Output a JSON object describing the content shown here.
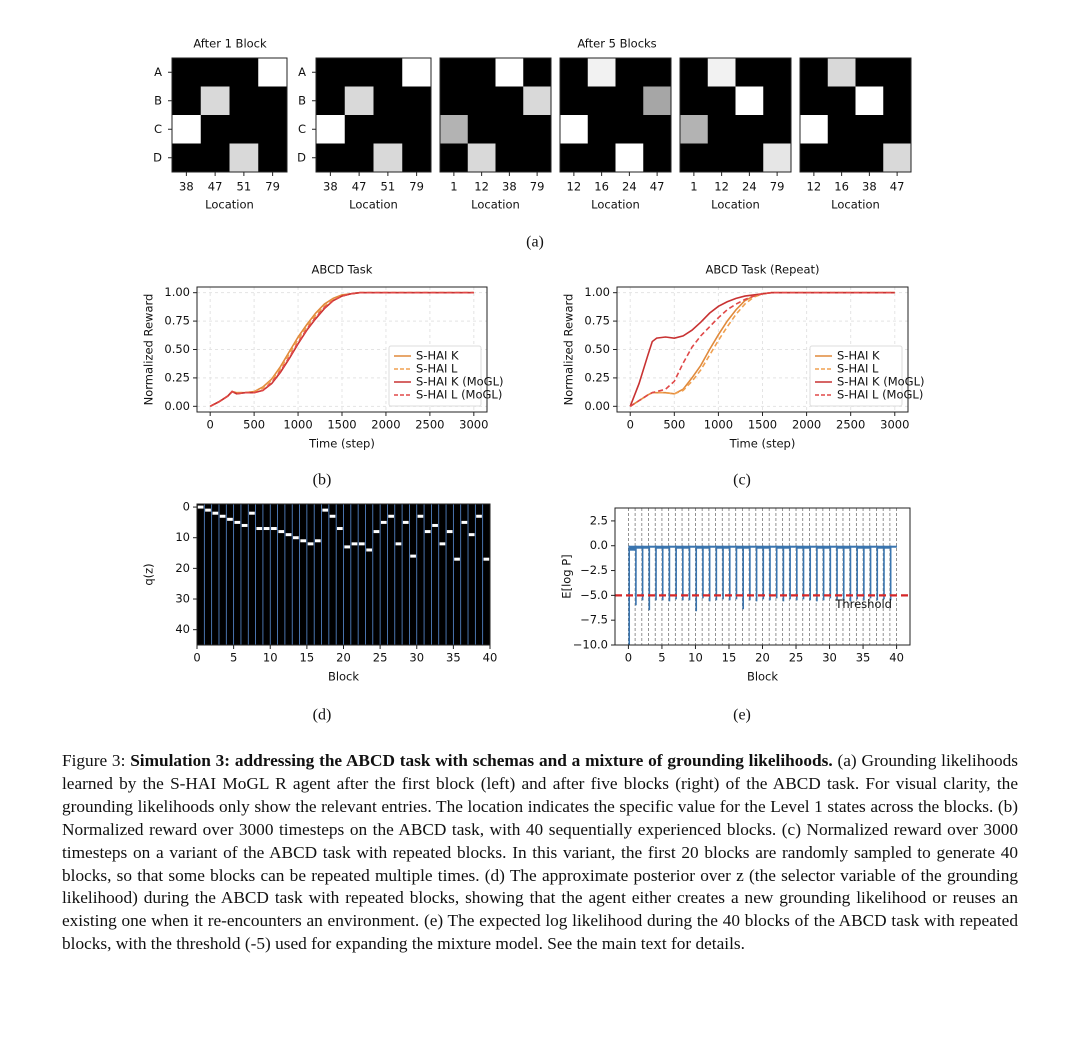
{
  "chart_data": [
    {
      "type": "heatmap",
      "title": "After 1 Block",
      "rows": [
        "A",
        "B",
        "C",
        "D"
      ],
      "categories": [
        "38",
        "47",
        "51",
        "79"
      ],
      "xlabel": "Location",
      "values": [
        [
          0,
          0,
          0,
          1
        ],
        [
          0,
          0.85,
          0,
          0
        ],
        [
          1,
          0,
          0,
          0
        ],
        [
          0,
          0,
          0.85,
          0
        ]
      ]
    },
    {
      "type": "heatmap",
      "title": "After 5 Blocks",
      "rows": [
        "A",
        "B",
        "C",
        "D"
      ],
      "categories": [
        "38",
        "47",
        "51",
        "79"
      ],
      "xlabel": "Location",
      "values": [
        [
          0,
          0,
          0,
          1
        ],
        [
          0,
          0.85,
          0,
          0
        ],
        [
          1,
          0,
          0,
          0
        ],
        [
          0,
          0,
          0.85,
          0
        ]
      ]
    },
    {
      "type": "heatmap",
      "categories": [
        "1",
        "12",
        "38",
        "79"
      ],
      "xlabel": "Location",
      "values": [
        [
          0,
          0,
          1,
          0
        ],
        [
          0,
          0,
          0,
          0.85
        ],
        [
          0.7,
          0,
          0,
          0
        ],
        [
          0,
          0.85,
          0,
          0
        ]
      ]
    },
    {
      "type": "heatmap",
      "categories": [
        "12",
        "16",
        "24",
        "47"
      ],
      "xlabel": "Location",
      "values": [
        [
          0,
          0.95,
          0,
          0
        ],
        [
          0,
          0,
          0,
          0.65
        ],
        [
          1,
          0,
          0,
          0
        ],
        [
          0,
          0,
          1,
          0
        ]
      ]
    },
    {
      "type": "heatmap",
      "categories": [
        "1",
        "12",
        "24",
        "79"
      ],
      "xlabel": "Location",
      "values": [
        [
          0,
          0.95,
          0,
          0
        ],
        [
          0,
          0,
          1,
          0
        ],
        [
          0.7,
          0,
          0,
          0
        ],
        [
          0,
          0,
          0,
          0.9
        ]
      ]
    },
    {
      "type": "heatmap",
      "categories": [
        "12",
        "16",
        "38",
        "47"
      ],
      "xlabel": "Location",
      "values": [
        [
          0,
          0.85,
          0,
          0
        ],
        [
          0,
          0,
          1,
          0
        ],
        [
          1,
          0,
          0,
          0
        ],
        [
          0,
          0,
          0,
          0.85
        ]
      ]
    },
    {
      "type": "line",
      "title": "ABCD Task",
      "xlabel": "Time (step)",
      "ylabel": "Normalized Reward",
      "grid": true,
      "legend": "lower right",
      "xlim": [
        -150,
        3150
      ],
      "ylim": [
        -0.05,
        1.05
      ],
      "xticks": [
        0,
        500,
        1000,
        1500,
        2000,
        2500,
        3000
      ],
      "yticks": [
        {
          "value": 0,
          "label": "0.00"
        },
        {
          "value": 0.25,
          "label": "0.25"
        },
        {
          "value": 0.5,
          "label": "0.50"
        },
        {
          "value": 0.75,
          "label": "0.75"
        },
        {
          "value": 1,
          "label": "1.00"
        }
      ],
      "x": [
        0,
        100,
        200,
        250,
        300,
        400,
        500,
        600,
        700,
        800,
        900,
        1000,
        1100,
        1200,
        1300,
        1400,
        1500,
        1600,
        1700,
        1800,
        1900,
        2000,
        2500,
        3000
      ],
      "series": [
        {
          "name": "S-HAI K",
          "color": "#e08a3c",
          "linestyle": "solid",
          "values": [
            0,
            0.04,
            0.09,
            0.13,
            0.12,
            0.12,
            0.13,
            0.17,
            0.24,
            0.35,
            0.48,
            0.61,
            0.72,
            0.82,
            0.9,
            0.95,
            0.98,
            0.99,
            1,
            1,
            1,
            1,
            1,
            1
          ]
        },
        {
          "name": "S-HAI L",
          "color": "#f0a050",
          "linestyle": "dashed",
          "values": [
            0,
            0.04,
            0.09,
            0.13,
            0.12,
            0.12,
            0.13,
            0.16,
            0.23,
            0.33,
            0.46,
            0.59,
            0.7,
            0.8,
            0.88,
            0.94,
            0.97,
            0.99,
            1,
            1,
            1,
            1,
            1,
            1
          ]
        },
        {
          "name": "S-HAI K (MoGL)",
          "color": "#c83232",
          "linestyle": "solid",
          "values": [
            0,
            0.04,
            0.09,
            0.13,
            0.11,
            0.12,
            0.12,
            0.14,
            0.2,
            0.3,
            0.42,
            0.55,
            0.67,
            0.77,
            0.86,
            0.93,
            0.97,
            0.99,
            1,
            1,
            1,
            1,
            1,
            1
          ]
        },
        {
          "name": "S-HAI L (MoGL)",
          "color": "#e04848",
          "linestyle": "dashed",
          "values": [
            0,
            0.04,
            0.09,
            0.13,
            0.11,
            0.12,
            0.12,
            0.14,
            0.21,
            0.31,
            0.43,
            0.56,
            0.68,
            0.78,
            0.87,
            0.93,
            0.97,
            0.99,
            1,
            1,
            1,
            1,
            1,
            1
          ]
        }
      ]
    },
    {
      "type": "line",
      "title": "ABCD Task (Repeat)",
      "xlabel": "Time (step)",
      "ylabel": "Normalized Reward",
      "grid": true,
      "legend": "lower right",
      "xlim": [
        -150,
        3150
      ],
      "ylim": [
        -0.05,
        1.05
      ],
      "xticks": [
        0,
        500,
        1000,
        1500,
        2000,
        2500,
        3000
      ],
      "yticks": [
        {
          "value": 0,
          "label": "0.00"
        },
        {
          "value": 0.25,
          "label": "0.25"
        },
        {
          "value": 0.5,
          "label": "0.50"
        },
        {
          "value": 0.75,
          "label": "0.75"
        },
        {
          "value": 1,
          "label": "1.00"
        }
      ],
      "x": [
        0,
        100,
        200,
        250,
        300,
        400,
        500,
        600,
        700,
        800,
        900,
        1000,
        1100,
        1200,
        1300,
        1400,
        1500,
        1600,
        1700,
        1800,
        1900,
        2000,
        2500,
        3000
      ],
      "series": [
        {
          "name": "S-HAI K",
          "color": "#e08a3c",
          "linestyle": "solid",
          "values": [
            0,
            0.05,
            0.1,
            0.12,
            0.12,
            0.12,
            0.11,
            0.15,
            0.25,
            0.36,
            0.5,
            0.63,
            0.75,
            0.85,
            0.93,
            0.97,
            0.99,
            1,
            1,
            1,
            1,
            1,
            1,
            1
          ]
        },
        {
          "name": "S-HAI L",
          "color": "#f0a050",
          "linestyle": "dashed",
          "values": [
            0,
            0.05,
            0.1,
            0.12,
            0.12,
            0.12,
            0.11,
            0.14,
            0.22,
            0.32,
            0.45,
            0.58,
            0.7,
            0.81,
            0.9,
            0.96,
            0.99,
            1,
            1,
            1,
            1,
            1,
            1,
            1
          ]
        },
        {
          "name": "S-HAI K (MoGL)",
          "color": "#c83232",
          "linestyle": "solid",
          "values": [
            0,
            0.2,
            0.45,
            0.57,
            0.6,
            0.61,
            0.6,
            0.62,
            0.67,
            0.74,
            0.82,
            0.88,
            0.92,
            0.95,
            0.97,
            0.98,
            0.99,
            1,
            1,
            1,
            1,
            1,
            1,
            1
          ]
        },
        {
          "name": "S-HAI L (MoGL)",
          "color": "#e04848",
          "linestyle": "dashed",
          "values": [
            0,
            0.05,
            0.1,
            0.12,
            0.13,
            0.15,
            0.22,
            0.38,
            0.52,
            0.62,
            0.7,
            0.78,
            0.85,
            0.9,
            0.94,
            0.97,
            0.99,
            1,
            1,
            1,
            1,
            1,
            1,
            1
          ]
        }
      ]
    },
    {
      "type": "raster",
      "xlabel": "Block",
      "ylabel": "q(z)",
      "xlim": [
        0,
        40
      ],
      "ylim": [
        45,
        -1
      ],
      "xticks": [
        0,
        5,
        10,
        15,
        20,
        25,
        30,
        35,
        40
      ],
      "yticks": [
        0,
        10,
        20,
        30,
        40
      ],
      "values": [
        0,
        1,
        2,
        3,
        4,
        5,
        6,
        2,
        7,
        7,
        7,
        8,
        9,
        10,
        11,
        12,
        11,
        1,
        3,
        7,
        13,
        12,
        12,
        14,
        8,
        5,
        3,
        12,
        5,
        16,
        3,
        8,
        6,
        12,
        8,
        17,
        5,
        9,
        3,
        17
      ]
    },
    {
      "type": "bar",
      "xlabel": "Block",
      "ylabel": "E[log P]",
      "color": "#3a75af",
      "xlim": [
        -2,
        42
      ],
      "ylim": [
        -10,
        3.8
      ],
      "xticks": [
        0,
        5,
        10,
        15,
        20,
        25,
        30,
        35,
        40
      ],
      "yticks": [
        2.5,
        {
          "value": 0,
          "label": "0.0"
        },
        {
          "value": -2.5,
          "label": "−2.5"
        },
        {
          "value": -5,
          "label": "−5.0"
        },
        {
          "value": -7.5,
          "label": "−7.5"
        },
        {
          "value": -10,
          "label": "−10.0"
        }
      ],
      "threshold": -5,
      "threshold_label": "Threshold",
      "threshold_color": "#d62728",
      "values": [
        -0.5,
        -0.3,
        -0.3,
        -0.2,
        -0.3,
        -0.3,
        -0.2,
        -0.3,
        -0.3,
        -0.2,
        -0.3,
        -0.3,
        -0.2,
        -0.3,
        -0.3,
        -0.2,
        -0.3,
        -0.3,
        -0.2,
        -0.3,
        -0.3,
        -0.2,
        -0.3,
        -0.3,
        -0.2,
        -0.3,
        -0.3,
        -0.2,
        -0.3,
        -0.3,
        -0.2,
        -0.3,
        -0.3,
        -0.2,
        -0.3,
        -0.3,
        -0.2,
        -0.3,
        -0.3,
        -0.2
      ],
      "dip_values": [
        -10,
        -6,
        -5.5,
        -6.5,
        -5.5,
        -5.5,
        -5.6,
        -5.4,
        -5.5,
        -5.5,
        -6.6,
        -5.3,
        -5.6,
        -5.5,
        -5.4,
        -5.5,
        -5.4,
        -6.4,
        -5.5,
        -5.6,
        -5.4,
        -5.5,
        -5.3,
        -5.6,
        -5.4,
        -5.5,
        -5.4,
        -5.5,
        -5.6,
        -5.5,
        -5.3,
        -5.4,
        -5.5,
        -5.6,
        -5.4,
        -5.5,
        -5.3,
        -5.5,
        -5.4,
        -5.5
      ]
    }
  ],
  "panel_labels": [
    "(a)",
    "(b)",
    "(c)",
    "(d)",
    "(e)"
  ],
  "caption": {
    "label": "Figure 3:",
    "bold": "Simulation 3: addressing the ABCD task with schemas and a mixture of grounding likelihoods.",
    "text": "(a) Grounding likelihoods learned by the S-HAI MoGL R agent after the first block (left) and after five blocks (right) of the ABCD task. For visual clarity, the grounding likelihoods only show the relevant entries. The location indicates the specific value for the Level 1 states across the blocks. (b) Normalized reward over 3000 timesteps on the ABCD task, with 40 sequentially experienced blocks. (c) Normalized reward over 3000 timesteps on a variant of the ABCD task with repeated blocks. In this variant, the first 20 blocks are randomly sampled to generate 40 blocks, so that some blocks can be repeated multiple times. (d) The approximate posterior over z (the selector variable of the grounding likelihood) during the ABCD task with repeated blocks, showing that the agent either creates a new grounding likelihood or reuses an existing one when it re-encounters an environment. (e) The expected log likelihood during the 40 blocks of the ABCD task with repeated blocks, with the threshold (-5) used for expanding the mixture model. See the main text for details."
  }
}
